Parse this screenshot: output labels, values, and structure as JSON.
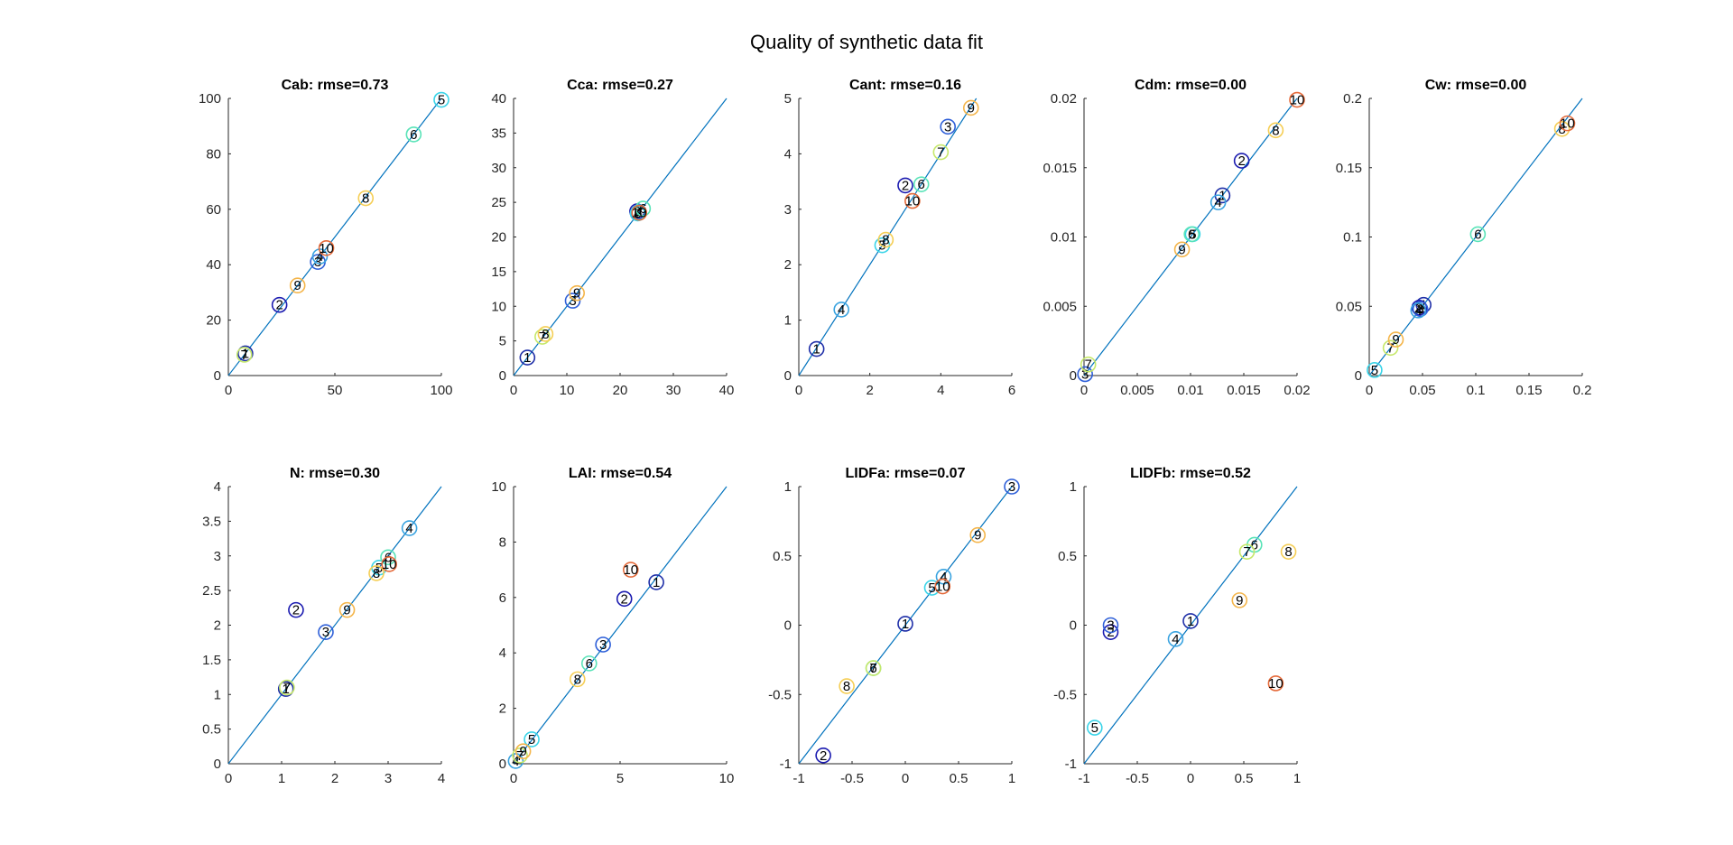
{
  "figure_title": "Quality of synthetic data fit",
  "chart_data": [
    {
      "type": "scatter",
      "title": "Cab: rmse=0.73",
      "xlim": [
        0,
        100
      ],
      "ylim": [
        0,
        100
      ],
      "xticks": [
        "0",
        "50",
        "100"
      ],
      "yticks": [
        "0",
        "20",
        "40",
        "60",
        "80",
        "100"
      ],
      "xtick_values": [
        0,
        50,
        100
      ],
      "ytick_values": [
        0,
        20,
        40,
        60,
        80,
        100
      ],
      "identity_line": true,
      "points": [
        {
          "label": "1",
          "x": 8,
          "y": 8
        },
        {
          "label": "2",
          "x": 24,
          "y": 25.5
        },
        {
          "label": "3",
          "x": 42,
          "y": 41
        },
        {
          "label": "4",
          "x": 43,
          "y": 43
        },
        {
          "label": "5",
          "x": 100,
          "y": 99.5
        },
        {
          "label": "6",
          "x": 87,
          "y": 87
        },
        {
          "label": "7",
          "x": 7.5,
          "y": 7.5
        },
        {
          "label": "8",
          "x": 64.5,
          "y": 64
        },
        {
          "label": "9",
          "x": 32.5,
          "y": 32.5
        },
        {
          "label": "10",
          "x": 46,
          "y": 46
        }
      ]
    },
    {
      "type": "scatter",
      "title": "Cca: rmse=0.27",
      "xlim": [
        0,
        40
      ],
      "ylim": [
        0,
        40
      ],
      "xticks": [
        "0",
        "10",
        "20",
        "30",
        "40"
      ],
      "yticks": [
        "0",
        "5",
        "10",
        "15",
        "20",
        "25",
        "30",
        "35",
        "40"
      ],
      "xtick_values": [
        0,
        10,
        20,
        30,
        40
      ],
      "ytick_values": [
        0,
        5,
        10,
        15,
        20,
        25,
        30,
        35,
        40
      ],
      "identity_line": true,
      "points": [
        {
          "label": "1",
          "x": 2.6,
          "y": 2.6
        },
        {
          "label": "2",
          "x": 23.2,
          "y": 23.7
        },
        {
          "label": "3",
          "x": 11.1,
          "y": 10.8
        },
        {
          "label": "4",
          "x": 23.5,
          "y": 23.6
        },
        {
          "label": "5",
          "x": 23.3,
          "y": 23.4
        },
        {
          "label": "6",
          "x": 24.3,
          "y": 24.1
        },
        {
          "label": "7",
          "x": 5.4,
          "y": 5.6
        },
        {
          "label": "8",
          "x": 6,
          "y": 6
        },
        {
          "label": "9",
          "x": 11.9,
          "y": 11.9
        },
        {
          "label": "10",
          "x": 23.6,
          "y": 23.5
        }
      ]
    },
    {
      "type": "scatter",
      "title": "Cant: rmse=0.16",
      "xlim": [
        0,
        6
      ],
      "ylim": [
        0,
        5
      ],
      "xticks": [
        "0",
        "2",
        "4",
        "6"
      ],
      "yticks": [
        "0",
        "1",
        "2",
        "3",
        "4",
        "5"
      ],
      "xtick_values": [
        0,
        2,
        4,
        6
      ],
      "ytick_values": [
        0,
        1,
        2,
        3,
        4,
        5
      ],
      "identity_line": true,
      "points": [
        {
          "label": "1",
          "x": 0.5,
          "y": 0.48
        },
        {
          "label": "2",
          "x": 3.0,
          "y": 3.43
        },
        {
          "label": "3",
          "x": 4.2,
          "y": 4.49
        },
        {
          "label": "4",
          "x": 1.2,
          "y": 1.19
        },
        {
          "label": "5",
          "x": 2.35,
          "y": 2.35
        },
        {
          "label": "6",
          "x": 3.45,
          "y": 3.45
        },
        {
          "label": "7",
          "x": 4.0,
          "y": 4.03
        },
        {
          "label": "8",
          "x": 2.45,
          "y": 2.45
        },
        {
          "label": "9",
          "x": 4.85,
          "y": 4.83
        },
        {
          "label": "10",
          "x": 3.2,
          "y": 3.15
        }
      ]
    },
    {
      "type": "scatter",
      "title": "Cdm: rmse=0.00",
      "xlim": [
        0,
        0.02
      ],
      "ylim": [
        0,
        0.02
      ],
      "xticks": [
        "0",
        "0.005",
        "0.01",
        "0.015",
        "0.02"
      ],
      "yticks": [
        "0",
        "0.005",
        "0.01",
        "0.015",
        "0.02"
      ],
      "xtick_values": [
        0,
        0.005,
        0.01,
        0.015,
        0.02
      ],
      "ytick_values": [
        0,
        0.005,
        0.01,
        0.015,
        0.02
      ],
      "identity_line": true,
      "points": [
        {
          "label": "1",
          "x": 0.013,
          "y": 0.013
        },
        {
          "label": "2",
          "x": 0.0148,
          "y": 0.0155
        },
        {
          "label": "3",
          "x": 0.0001,
          "y": 0.0001
        },
        {
          "label": "4",
          "x": 0.0126,
          "y": 0.0125
        },
        {
          "label": "5",
          "x": 0.0102,
          "y": 0.0102
        },
        {
          "label": "6",
          "x": 0.0101,
          "y": 0.0102
        },
        {
          "label": "7",
          "x": 0.0004,
          "y": 0.0008
        },
        {
          "label": "8",
          "x": 0.018,
          "y": 0.0177
        },
        {
          "label": "9",
          "x": 0.0092,
          "y": 0.0091
        },
        {
          "label": "10",
          "x": 0.02,
          "y": 0.0199
        }
      ]
    },
    {
      "type": "scatter",
      "title": "Cw: rmse=0.00",
      "xlim": [
        0,
        0.2
      ],
      "ylim": [
        0,
        0.2
      ],
      "xticks": [
        "0",
        "0.05",
        "0.1",
        "0.15",
        "0.2"
      ],
      "yticks": [
        "0",
        "0.05",
        "0.1",
        "0.15",
        "0.2"
      ],
      "xtick_values": [
        0,
        0.05,
        0.1,
        0.15,
        0.2
      ],
      "ytick_values": [
        0,
        0.05,
        0.1,
        0.15,
        0.2
      ],
      "identity_line": true,
      "points": [
        {
          "label": "1",
          "x": 0.051,
          "y": 0.051
        },
        {
          "label": "2",
          "x": 0.047,
          "y": 0.049
        },
        {
          "label": "3",
          "x": 0.048,
          "y": 0.048
        },
        {
          "label": "4",
          "x": 0.046,
          "y": 0.047
        },
        {
          "label": "5",
          "x": 0.005,
          "y": 0.004
        },
        {
          "label": "6",
          "x": 0.102,
          "y": 0.102
        },
        {
          "label": "7",
          "x": 0.02,
          "y": 0.02
        },
        {
          "label": "8",
          "x": 0.181,
          "y": 0.178
        },
        {
          "label": "9",
          "x": 0.025,
          "y": 0.026
        },
        {
          "label": "10",
          "x": 0.186,
          "y": 0.182
        }
      ]
    },
    {
      "type": "scatter",
      "title": "N: rmse=0.30",
      "xlim": [
        0,
        4
      ],
      "ylim": [
        0,
        4
      ],
      "xticks": [
        "0",
        "1",
        "2",
        "3",
        "4"
      ],
      "yticks": [
        "0",
        "0.5",
        "1",
        "1.5",
        "2",
        "2.5",
        "3",
        "3.5",
        "4"
      ],
      "xtick_values": [
        0,
        1,
        2,
        3,
        4
      ],
      "ytick_values": [
        0,
        0.5,
        1,
        1.5,
        2,
        2.5,
        3,
        3.5,
        4
      ],
      "identity_line": true,
      "points": [
        {
          "label": "1",
          "x": 1.08,
          "y": 1.08
        },
        {
          "label": "2",
          "x": 1.27,
          "y": 2.22
        },
        {
          "label": "3",
          "x": 1.83,
          "y": 1.9
        },
        {
          "label": "4",
          "x": 3.4,
          "y": 3.4
        },
        {
          "label": "5",
          "x": 2.83,
          "y": 2.83
        },
        {
          "label": "6",
          "x": 3.0,
          "y": 2.98
        },
        {
          "label": "7",
          "x": 1.1,
          "y": 1.1
        },
        {
          "label": "8",
          "x": 2.78,
          "y": 2.75
        },
        {
          "label": "9",
          "x": 2.23,
          "y": 2.22
        },
        {
          "label": "10",
          "x": 3.02,
          "y": 2.88
        }
      ]
    },
    {
      "type": "scatter",
      "title": "LAI: rmse=0.54",
      "xlim": [
        0,
        10
      ],
      "ylim": [
        0,
        10
      ],
      "xticks": [
        "0",
        "5",
        "10"
      ],
      "yticks": [
        "0",
        "2",
        "4",
        "6",
        "8",
        "10"
      ],
      "xtick_values": [
        0,
        5,
        10
      ],
      "ytick_values": [
        0,
        2,
        4,
        6,
        8,
        10
      ],
      "identity_line": true,
      "points": [
        {
          "label": "1",
          "x": 6.7,
          "y": 6.55
        },
        {
          "label": "2",
          "x": 5.2,
          "y": 5.95
        },
        {
          "label": "3",
          "x": 4.2,
          "y": 4.3
        },
        {
          "label": "4",
          "x": 0.1,
          "y": 0.1
        },
        {
          "label": "5",
          "x": 0.85,
          "y": 0.88
        },
        {
          "label": "6",
          "x": 3.55,
          "y": 3.62
        },
        {
          "label": "7",
          "x": 0.3,
          "y": 0.3
        },
        {
          "label": "8",
          "x": 3.0,
          "y": 3.05
        },
        {
          "label": "9",
          "x": 0.45,
          "y": 0.45
        },
        {
          "label": "10",
          "x": 5.5,
          "y": 7.0
        }
      ]
    },
    {
      "type": "scatter",
      "title": "LIDFa: rmse=0.07",
      "xlim": [
        -1,
        1
      ],
      "ylim": [
        -1,
        1
      ],
      "xticks": [
        "-1",
        "-0.5",
        "0",
        "0.5",
        "1"
      ],
      "yticks": [
        "-1",
        "-0.5",
        "0",
        "0.5",
        "1"
      ],
      "xtick_values": [
        -1,
        -0.5,
        0,
        0.5,
        1
      ],
      "ytick_values": [
        -1,
        -0.5,
        0,
        0.5,
        1
      ],
      "identity_line": true,
      "points": [
        {
          "label": "1",
          "x": 0.0,
          "y": 0.01
        },
        {
          "label": "2",
          "x": -0.77,
          "y": -0.94
        },
        {
          "label": "3",
          "x": 1.0,
          "y": 1.0
        },
        {
          "label": "4",
          "x": 0.36,
          "y": 0.35
        },
        {
          "label": "5",
          "x": 0.25,
          "y": 0.27
        },
        {
          "label": "6",
          "x": -0.3,
          "y": -0.31
        },
        {
          "label": "7",
          "x": -0.3,
          "y": -0.31
        },
        {
          "label": "8",
          "x": -0.55,
          "y": -0.44
        },
        {
          "label": "9",
          "x": 0.68,
          "y": 0.65
        },
        {
          "label": "10",
          "x": 0.35,
          "y": 0.28
        }
      ]
    },
    {
      "type": "scatter",
      "title": "LIDFb: rmse=0.52",
      "xlim": [
        -1,
        1
      ],
      "ylim": [
        -1,
        1
      ],
      "xticks": [
        "-1",
        "-0.5",
        "0",
        "0.5",
        "1"
      ],
      "yticks": [
        "-1",
        "-0.5",
        "0",
        "0.5",
        "1"
      ],
      "xtick_values": [
        -1,
        -0.5,
        0,
        0.5,
        1
      ],
      "ytick_values": [
        -1,
        -0.5,
        0,
        0.5,
        1
      ],
      "identity_line": true,
      "points": [
        {
          "label": "1",
          "x": 0.0,
          "y": 0.03
        },
        {
          "label": "2",
          "x": -0.75,
          "y": -0.05
        },
        {
          "label": "3",
          "x": -0.75,
          "y": 0.0
        },
        {
          "label": "4",
          "x": -0.14,
          "y": -0.1
        },
        {
          "label": "5",
          "x": -0.9,
          "y": -0.74
        },
        {
          "label": "6",
          "x": 0.6,
          "y": 0.58
        },
        {
          "label": "7",
          "x": 0.53,
          "y": 0.53
        },
        {
          "label": "8",
          "x": 0.92,
          "y": 0.53
        },
        {
          "label": "9",
          "x": 0.46,
          "y": 0.18
        },
        {
          "label": "10",
          "x": 0.8,
          "y": -0.42
        }
      ]
    }
  ],
  "marker_colors": {
    "1": "#1F2FA8",
    "2": "#1B1BB0",
    "3": "#2E5FD8",
    "4": "#39A3E0",
    "5": "#3AD4E8",
    "6": "#5AE3B8",
    "7": "#C6E86A",
    "8": "#F5CE55",
    "9": "#F4B54A",
    "10": "#E56A3A"
  },
  "line_color": "#0072BD"
}
